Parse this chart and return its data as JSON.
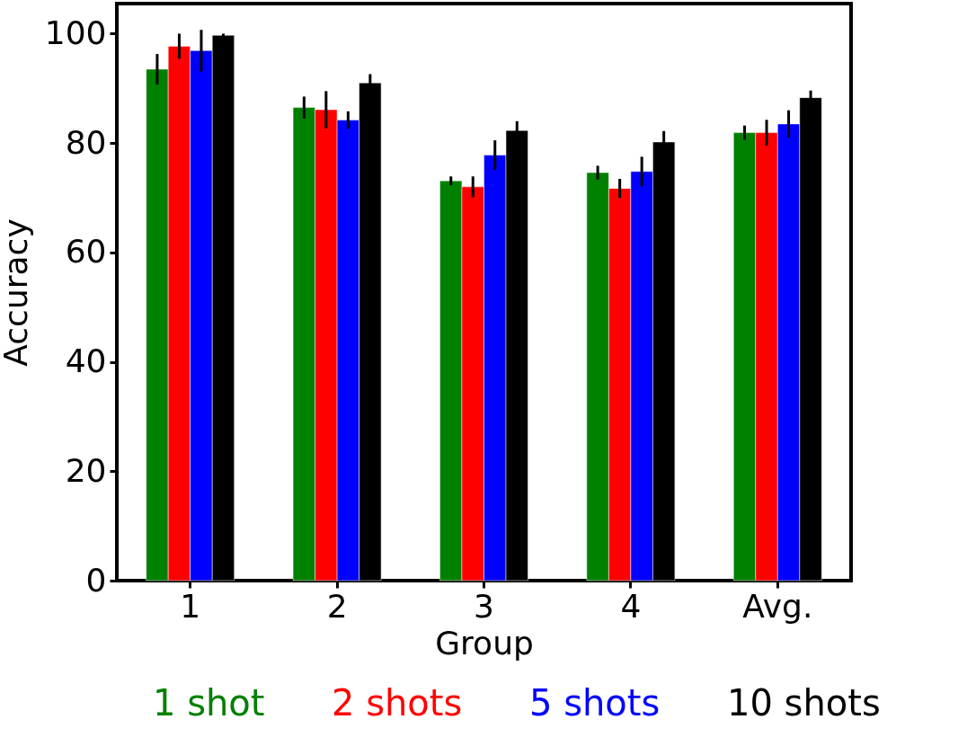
{
  "chart_data": {
    "type": "bar",
    "xlabel": "Group",
    "ylabel": "Accuracy",
    "categories": [
      "1",
      "2",
      "3",
      "4",
      "Avg."
    ],
    "series": [
      {
        "name": "1 shot",
        "color": "#008000",
        "values": [
          93.5,
          86.5,
          73.1,
          74.6,
          81.9
        ],
        "errors": [
          2.8,
          2.0,
          0.8,
          1.25,
          1.3
        ]
      },
      {
        "name": "2 shots",
        "color": "#ff0000",
        "values": [
          97.7,
          86.1,
          72.0,
          71.7,
          81.9
        ],
        "errors": [
          2.3,
          3.4,
          1.9,
          1.75,
          2.35
        ]
      },
      {
        "name": "5 shots",
        "color": "#0000ff",
        "values": [
          96.9,
          84.2,
          77.8,
          74.8,
          83.5
        ],
        "errors": [
          3.8,
          1.6,
          2.7,
          2.7,
          2.5
        ]
      },
      {
        "name": "10 shots",
        "color": "#000000",
        "values": [
          99.7,
          91.0,
          82.3,
          80.2,
          88.3
        ],
        "errors": [
          0.3,
          1.6,
          1.7,
          2.0,
          1.3
        ]
      }
    ],
    "ylim": [
      0,
      105.5
    ],
    "yticks": [
      0,
      20,
      40,
      60,
      80,
      100
    ],
    "grid": false,
    "legend": "bottom"
  }
}
